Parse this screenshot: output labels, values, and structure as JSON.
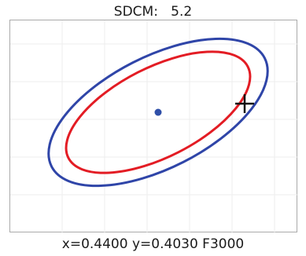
{
  "sdcm": {
    "label": "SDCM:",
    "value": "5.2"
  },
  "readout": {
    "x_label": "x=",
    "x_value": "0.4400",
    "y_label": "y=",
    "y_value": "0.4030",
    "target": "F3000"
  },
  "colors": {
    "outer_ellipse": "#2f45a8",
    "inner_ellipse": "#e31c24",
    "center_dot": "#2f4fa8",
    "crosshair": "#111111",
    "grid": "#eeeeee",
    "frame_border": "#aaaaaa"
  },
  "icons": {
    "crosshair": "plus-crosshair-icon",
    "center": "center-dot-icon"
  }
}
